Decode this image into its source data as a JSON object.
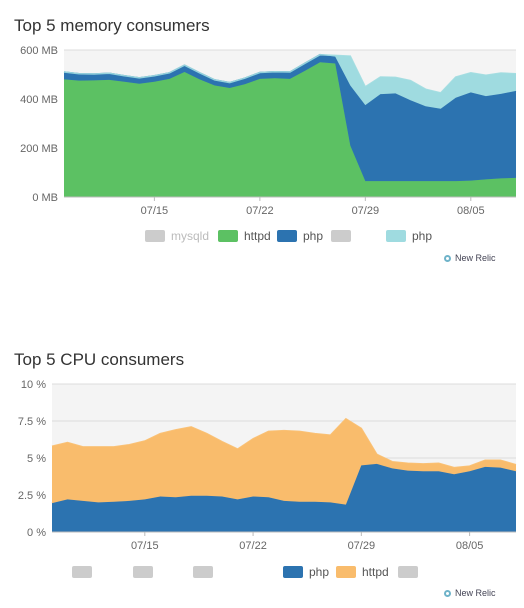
{
  "chart_data": [
    {
      "type": "area",
      "title": "Top 5 memory consumers",
      "stacked": true,
      "ylim": [
        0,
        600
      ],
      "yticks": [
        "0 MB",
        "200 MB",
        "400 MB",
        "600 MB"
      ],
      "ytick_values": [
        0,
        200,
        400,
        600
      ],
      "xticks": [
        "07/15",
        "07/22",
        "07/29",
        "08/05"
      ],
      "xtick_index": [
        6,
        13,
        20,
        27
      ],
      "grid": true,
      "legend_position": "bottom",
      "series": [
        {
          "name": "httpd",
          "color": "#5cc163",
          "values": [
            480,
            475,
            476,
            478,
            470,
            462,
            470,
            482,
            510,
            480,
            455,
            445,
            460,
            482,
            485,
            482,
            515,
            550,
            545,
            210,
            65,
            65,
            65,
            65,
            65,
            65,
            65,
            67,
            72,
            76,
            78
          ]
        },
        {
          "name": "php",
          "color": "#2c73b0",
          "values": [
            30,
            28,
            26,
            27,
            25,
            24,
            25,
            25,
            28,
            27,
            23,
            22,
            25,
            26,
            26,
            28,
            31,
            31,
            28,
            245,
            310,
            355,
            358,
            330,
            305,
            295,
            340,
            360,
            340,
            345,
            355
          ]
        },
        {
          "name": "php",
          "color": "#9fdbe0",
          "values": [
            0,
            0,
            0,
            0,
            0,
            0,
            0,
            0,
            0,
            0,
            0,
            0,
            0,
            0,
            0,
            0,
            0,
            0,
            5,
            120,
            75,
            70,
            65,
            80,
            70,
            65,
            85,
            80,
            85,
            85,
            70
          ]
        }
      ],
      "legend": [
        {
          "label": "mysqld",
          "color": "#cccccc",
          "dim": true
        },
        {
          "label": "httpd",
          "color": "#5cc163",
          "dim": false
        },
        {
          "label": "php",
          "color": "#2c73b0",
          "dim": false
        },
        {
          "label": "",
          "color": "#cccccc",
          "dim": true
        },
        {
          "label": "php",
          "color": "#9fdbe0",
          "dim": false
        }
      ]
    },
    {
      "type": "area",
      "title": "Top 5 CPU consumers",
      "stacked": true,
      "ylim": [
        0,
        10
      ],
      "yticks": [
        "0 %",
        "2.5 %",
        "5 %",
        "7.5 %",
        "10 %"
      ],
      "ytick_values": [
        0,
        2.5,
        5,
        7.5,
        10
      ],
      "xticks": [
        "07/15",
        "07/22",
        "07/29",
        "08/05"
      ],
      "xtick_index": [
        6,
        13,
        20,
        27
      ],
      "grid": true,
      "legend_position": "bottom",
      "series": [
        {
          "name": "php",
          "color": "#2c73b0",
          "values": [
            1.95,
            2.2,
            2.1,
            2.0,
            2.05,
            2.1,
            2.2,
            2.4,
            2.35,
            2.45,
            2.45,
            2.4,
            2.2,
            2.4,
            2.35,
            2.1,
            2.05,
            2.05,
            2.0,
            1.85,
            4.5,
            4.6,
            4.3,
            4.15,
            4.1,
            4.1,
            3.9,
            4.1,
            4.4,
            4.35,
            4.1
          ]
        },
        {
          "name": "httpd",
          "color": "#f9bc6c",
          "values": [
            3.85,
            3.85,
            3.65,
            3.75,
            3.7,
            3.8,
            3.95,
            4.25,
            4.55,
            4.65,
            4.2,
            3.7,
            3.4,
            3.9,
            4.45,
            4.75,
            4.75,
            4.6,
            4.55,
            5.8,
            2.5,
            0.65,
            0.45,
            0.5,
            0.5,
            0.55,
            0.45,
            0.35,
            0.45,
            0.5,
            0.45
          ]
        }
      ],
      "legend": [
        {
          "label": "",
          "color": "#cccccc",
          "dim": true
        },
        {
          "label": "",
          "color": "#cccccc",
          "dim": true
        },
        {
          "label": "",
          "color": "#cccccc",
          "dim": true
        },
        {
          "label": "php",
          "color": "#2c73b0",
          "dim": false
        },
        {
          "label": "httpd",
          "color": "#f9bc6c",
          "dim": false
        },
        {
          "label": "",
          "color": "#cccccc",
          "dim": true
        }
      ]
    }
  ],
  "brand": {
    "label": "New Relic",
    "icon": "new-relic-ring-icon"
  }
}
